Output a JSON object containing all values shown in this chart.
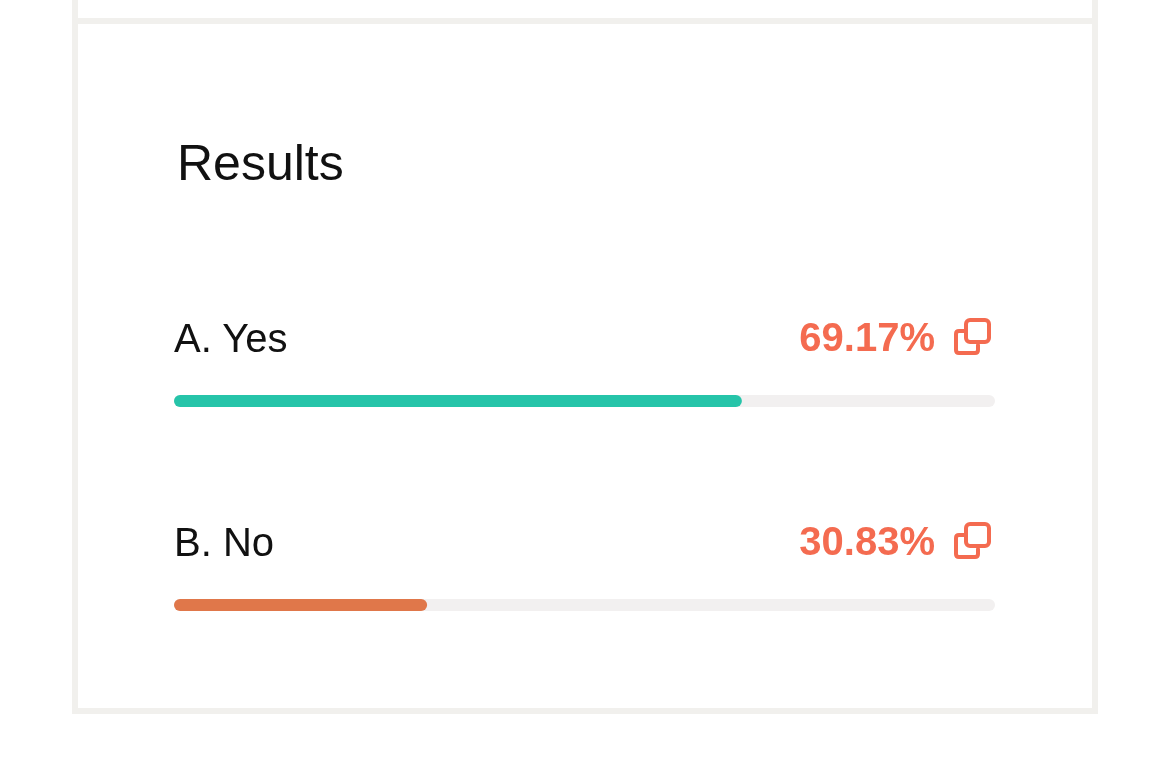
{
  "chart_data": {
    "type": "bar",
    "orientation": "horizontal",
    "title": "Results",
    "categories": [
      "A. Yes",
      "B. No"
    ],
    "values": [
      69.17,
      30.83
    ],
    "colors": [
      "#26c4a9",
      "#e0774a"
    ],
    "value_labels": [
      "69.17%",
      "30.83%"
    ],
    "xlim": [
      0,
      100
    ],
    "tick_labels": "y"
  }
}
